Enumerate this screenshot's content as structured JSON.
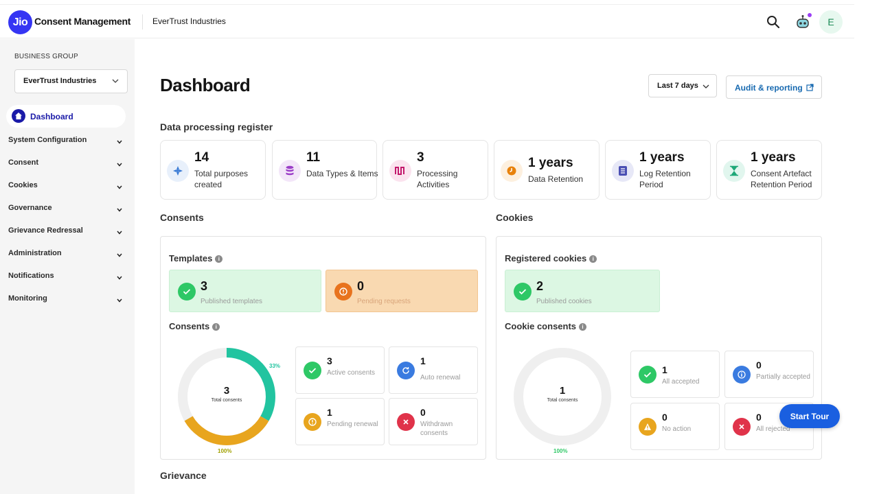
{
  "header": {
    "logo_text": "Jio",
    "app_title": "Consent Management",
    "org_name": "EverTrust Industries",
    "avatar_initial": "E",
    "icons": [
      "search-icon",
      "bot-icon"
    ]
  },
  "sidebar": {
    "group_label": "BUSINESS GROUP",
    "group_value": "EverTrust Industries",
    "active_item": "Dashboard",
    "items": [
      "System Configuration",
      "Consent",
      "Cookies",
      "Governance",
      "Grievance Redressal",
      "Administration",
      "Notifications",
      "Monitoring"
    ]
  },
  "main": {
    "title": "Dashboard",
    "range_label": "Last 7 days",
    "audit_label": "Audit & reporting",
    "register": {
      "heading": "Data processing register",
      "cards": [
        {
          "value": "14",
          "label": "Total purposes created",
          "icon": "purposes-icon",
          "color": "#3a7bd5"
        },
        {
          "value": "11",
          "label": "Data Types & Items",
          "icon": "database-icon",
          "color": "#9b3ec8"
        },
        {
          "value": "3",
          "label": "Processing Activities",
          "icon": "activity-icon",
          "color": "#c2186b"
        },
        {
          "value": "1 years",
          "label": "Data Retention",
          "icon": "clock-icon",
          "color": "#e8820c"
        },
        {
          "value": "1 years",
          "label": "Log Retention Period",
          "icon": "list-icon",
          "color": "#4a4fb3"
        },
        {
          "value": "1 years",
          "label": "Consent Artefact Retention Period",
          "icon": "hourglass-icon",
          "color": "#1ea878"
        }
      ]
    },
    "consents": {
      "heading": "Consents",
      "templates_heading": "Templates",
      "published": {
        "value": "3",
        "label": "Published templates"
      },
      "pending": {
        "value": "0",
        "label": "Pending requests"
      },
      "consents_heading": "Consents",
      "donut": {
        "value": "3",
        "label": "Total consents",
        "pct_top": "33%",
        "pct_bottom": "100%"
      },
      "stats": [
        {
          "value": "3",
          "label": "Active consents",
          "icon": "check-icon",
          "color": "#2ec866"
        },
        {
          "value": "1",
          "label": "Auto renewal",
          "icon": "refresh-icon",
          "color": "#3a7be0"
        },
        {
          "value": "1",
          "label": "Pending renewal",
          "icon": "alert-icon",
          "color": "#e8a51e"
        },
        {
          "value": "0",
          "label": "Withdrawn consents",
          "icon": "x-icon",
          "color": "#e0334a"
        }
      ]
    },
    "cookies": {
      "heading": "Cookies",
      "registered_heading": "Registered cookies",
      "published": {
        "value": "2",
        "label": "Published cookies"
      },
      "consents_heading": "Cookie consents",
      "donut": {
        "value": "1",
        "label": "Total consents",
        "pct_bottom": "100%"
      },
      "stats": [
        {
          "value": "1",
          "label": "All accepted",
          "icon": "check-icon",
          "color": "#2ec866"
        },
        {
          "value": "0",
          "label": "Partially accepted",
          "icon": "info-icon",
          "color": "#3a7be0"
        },
        {
          "value": "0",
          "label": "No action",
          "icon": "warning-icon",
          "color": "#e8a51e"
        },
        {
          "value": "0",
          "label": "All rejected",
          "icon": "x-icon",
          "color": "#e0334a"
        }
      ]
    },
    "grievance_heading": "Grievance",
    "tour_label": "Start Tour"
  }
}
